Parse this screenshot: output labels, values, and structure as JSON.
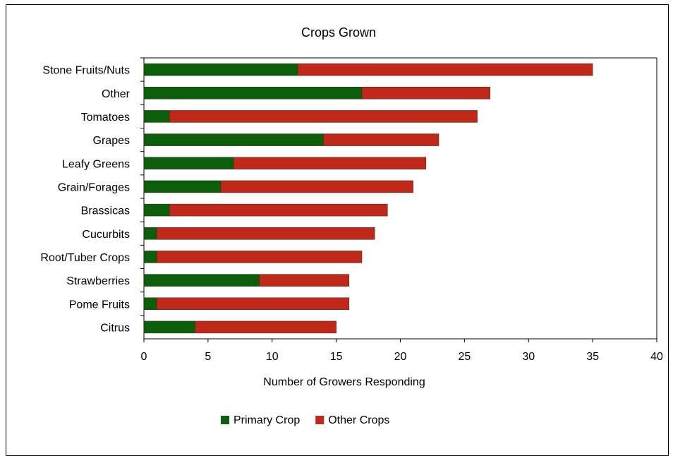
{
  "chart_data": {
    "type": "bar",
    "orientation": "horizontal",
    "stacked": true,
    "title": "Crops Grown",
    "xlabel": "Number of Growers Responding",
    "ylabel": "",
    "xlim": [
      0,
      40
    ],
    "xticks": [
      0,
      5,
      10,
      15,
      20,
      25,
      30,
      35,
      40
    ],
    "grid": false,
    "legend_position": "bottom",
    "categories": [
      "Stone Fruits/Nuts",
      "Other",
      "Tomatoes",
      "Grapes",
      "Leafy Greens",
      "Grain/Forages",
      "Brassicas",
      "Cucurbits",
      "Root/Tuber Crops",
      "Strawberries",
      "Pome Fruits",
      "Citrus"
    ],
    "series": [
      {
        "name": "Primary Crop",
        "color": "#0b5f0b",
        "values": [
          12,
          17,
          2,
          14,
          7,
          6,
          2,
          1,
          1,
          9,
          1,
          4
        ]
      },
      {
        "name": "Other Crops",
        "color": "#c0281a",
        "values": [
          23,
          10,
          24,
          9,
          15,
          15,
          17,
          17,
          16,
          7,
          15,
          11
        ]
      }
    ]
  }
}
